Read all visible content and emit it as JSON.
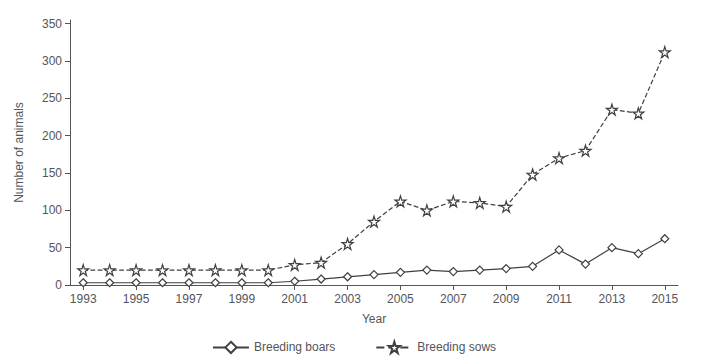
{
  "chart_data": {
    "type": "line",
    "xlabel": "Year",
    "ylabel": "Number of animals",
    "x": [
      1993,
      1994,
      1995,
      1996,
      1997,
      1998,
      1999,
      2000,
      2001,
      2002,
      2003,
      2004,
      2005,
      2006,
      2007,
      2008,
      2009,
      2010,
      2011,
      2012,
      2013,
      2014,
      2015
    ],
    "series": [
      {
        "name": "Breeding boars",
        "color": "#404040",
        "marker": "diamond",
        "line_style": "solid",
        "values": [
          3,
          3,
          3,
          3,
          3,
          3,
          3,
          3,
          5,
          8,
          11,
          14,
          17,
          20,
          18,
          20,
          22,
          25,
          47,
          28,
          50,
          42,
          62
        ]
      },
      {
        "name": "Breeding sows",
        "color": "#404040",
        "marker": "star",
        "line_style": "dashed",
        "values": [
          20,
          20,
          20,
          20,
          20,
          20,
          20,
          20,
          27,
          30,
          55,
          85,
          112,
          100,
          112,
          110,
          105,
          148,
          170,
          180,
          235,
          230,
          312
        ]
      }
    ],
    "xlim": [
      1992.5,
      2015.5
    ],
    "xticks": [
      1993,
      1995,
      1997,
      1999,
      2001,
      2003,
      2005,
      2007,
      2009,
      2011,
      2013,
      2015
    ],
    "ylim": [
      0,
      355
    ],
    "yticks": [
      0,
      50,
      100,
      150,
      200,
      250,
      300,
      350
    ],
    "grid": false,
    "legend": "bottom"
  }
}
